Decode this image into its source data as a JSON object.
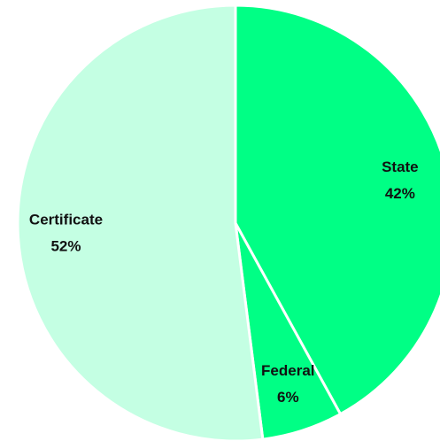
{
  "chart_data": {
    "type": "pie",
    "categories": [
      "State",
      "Federal",
      "Certificate"
    ],
    "values": [
      42,
      6,
      52
    ],
    "value_labels": [
      "42%",
      "6%",
      "52%"
    ],
    "colors": [
      "#00ff85",
      "#00ff85",
      "#c4ffe3"
    ]
  }
}
